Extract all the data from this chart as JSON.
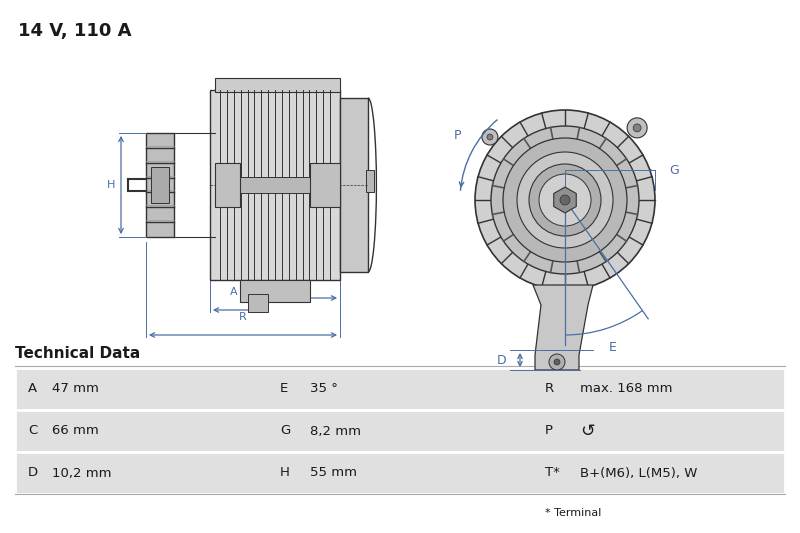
{
  "title": "14 V, 110 A",
  "title_fontsize": 13,
  "section_header": "Technical Data",
  "table_rows": [
    [
      "A",
      "47 mm",
      "E",
      "35 °",
      "R",
      "max. 168 mm"
    ],
    [
      "C",
      "66 mm",
      "G",
      "8,2 mm",
      "P",
      "↺"
    ],
    [
      "D",
      "10,2 mm",
      "H",
      "55 mm",
      "T*",
      "B+(M6), L(M5), W"
    ]
  ],
  "footnote": "* Terminal",
  "bg_color": "#ffffff",
  "table_bg_color": "#e0e0e0",
  "table_white": "#ffffff",
  "text_color": "#1a1a1a",
  "dim_color": "#4a6fa5",
  "draw_color": "#333333",
  "draw_light": "#aaaaaa",
  "draw_mid": "#888888"
}
